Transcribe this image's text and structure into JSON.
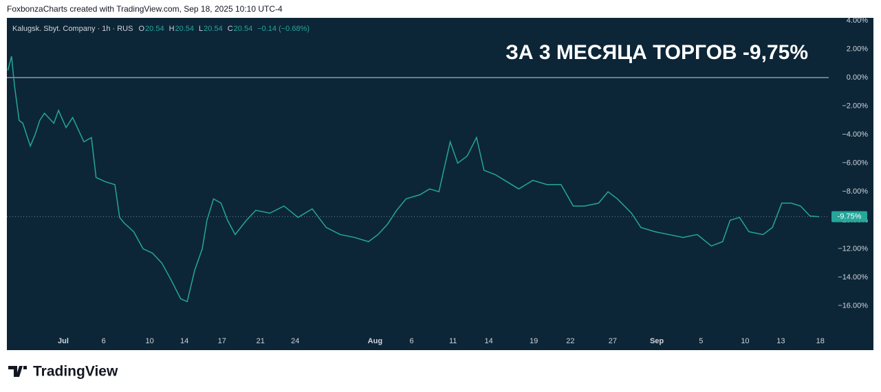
{
  "header": {
    "attribution": "FoxbonzaCharts created with TradingView.com, Sep 18, 2025 10:10 UTC-4"
  },
  "legend": {
    "symbol": "Kalugsk. Sbyt. Company · 1h · RUS",
    "fields": [
      {
        "key": "O",
        "value": 20.54
      },
      {
        "key": "H",
        "value": 20.54
      },
      {
        "key": "L",
        "value": 20.54
      },
      {
        "key": "C",
        "value": 20.54
      }
    ],
    "change": "−0.14 (−0.68%)"
  },
  "footer": {
    "brand": "TradingView"
  },
  "chart_data": {
    "type": "line",
    "annotation": "ЗА 3 МЕСЯЦА ТОРГОВ -9,75%",
    "x": [
      -5.9,
      -5.5,
      -5.2,
      -4.7,
      -4.3,
      -3.5,
      -3,
      -2.5,
      -2,
      -1,
      -0.5,
      0.3,
      1,
      1.5,
      2.2,
      3,
      3.5,
      4.5,
      5.5,
      6,
      6.5,
      7.5,
      8.5,
      9.5,
      10.5,
      11.5,
      12.5,
      13.2,
      14,
      14.8,
      15.3,
      16,
      16.8,
      17.5,
      18.3,
      19.5,
      20.5,
      22,
      23.5,
      25,
      26.5,
      28,
      29.5,
      31,
      32.5,
      33.5,
      34.5,
      35.5,
      36.5,
      38,
      39,
      40,
      41.2,
      42,
      43,
      44,
      44.8,
      46,
      47,
      48.5,
      50,
      51.5,
      53,
      54.3,
      55.5,
      57,
      58,
      59,
      60.5,
      61.5,
      63,
      64.5,
      66,
      67.5,
      69,
      70.2,
      71,
      72,
      73,
      74.5,
      75.5,
      76.5,
      77.5,
      78.5,
      79.5,
      80.5
    ],
    "series": [
      {
        "name": "Kalugsk. Sbyt. Company",
        "color": "#26a69a",
        "values": [
          0.5,
          1.5,
          -0.5,
          -3,
          -3.2,
          -4.8,
          -4,
          -3,
          -2.5,
          -3.2,
          -2.3,
          -3.5,
          -2.8,
          -3.5,
          -4.5,
          -4.2,
          -7,
          -7.3,
          -7.5,
          -9.8,
          -10.2,
          -10.8,
          -12,
          -12.3,
          -13,
          -14.2,
          -15.5,
          -15.7,
          -13.5,
          -12,
          -10,
          -8.5,
          -8.8,
          -10,
          -11,
          -10,
          -9.3,
          -9.5,
          -9,
          -9.8,
          -9.2,
          -10.5,
          -11,
          -11.2,
          -11.5,
          -11,
          -10.3,
          -9.3,
          -8.5,
          -8.2,
          -7.8,
          -8,
          -4.5,
          -6,
          -5.5,
          -4.2,
          -6.5,
          -6.8,
          -7.2,
          -7.8,
          -7.2,
          -7.5,
          -7.5,
          -9,
          -9,
          -8.8,
          -8,
          -8.5,
          -9.5,
          -10.5,
          -10.8,
          -11,
          -11.2,
          -11,
          -11.8,
          -11.5,
          -10,
          -9.8,
          -10.8,
          -11,
          -10.5,
          -8.8,
          -8.8,
          -9,
          -9.7,
          -9.75
        ]
      }
    ],
    "xlim": [
      -6,
      81.5
    ],
    "xticks": [
      {
        "value": 0,
        "label": "Jul"
      },
      {
        "value": 4.3,
        "label": "6"
      },
      {
        "value": 9.2,
        "label": "10"
      },
      {
        "value": 12.9,
        "label": "14"
      },
      {
        "value": 16.9,
        "label": "17"
      },
      {
        "value": 21,
        "label": "21"
      },
      {
        "value": 24.7,
        "label": "24"
      },
      {
        "value": 33.2,
        "label": "Aug"
      },
      {
        "value": 37.1,
        "label": "6"
      },
      {
        "value": 41.5,
        "label": "11"
      },
      {
        "value": 45.3,
        "label": "14"
      },
      {
        "value": 50.1,
        "label": "19"
      },
      {
        "value": 54,
        "label": "22"
      },
      {
        "value": 58.5,
        "label": "27"
      },
      {
        "value": 63.2,
        "label": "Sep"
      },
      {
        "value": 67.9,
        "label": "5"
      },
      {
        "value": 72.6,
        "label": "10"
      },
      {
        "value": 76.4,
        "label": "13"
      },
      {
        "value": 80.6,
        "label": "18"
      }
    ],
    "ylim": [
      -19.1,
      4.14
    ],
    "yticks": [
      {
        "value": 4,
        "label": "4.00%"
      },
      {
        "value": 2,
        "label": "2.00%"
      },
      {
        "value": 0,
        "label": "0.00%"
      },
      {
        "value": -2,
        "label": "−2.00%"
      },
      {
        "value": -4,
        "label": "−4.00%"
      },
      {
        "value": -6,
        "label": "−6.00%"
      },
      {
        "value": -8,
        "label": "−8.00%"
      },
      {
        "value": -10,
        "label": "−10.00%"
      },
      {
        "value": -12,
        "label": "−12.00%"
      },
      {
        "value": -14,
        "label": "−14.00%"
      },
      {
        "value": -16,
        "label": "−16.00%"
      }
    ],
    "baseline": 0,
    "last": {
      "value": -9.75,
      "label": "-9.75%"
    }
  }
}
